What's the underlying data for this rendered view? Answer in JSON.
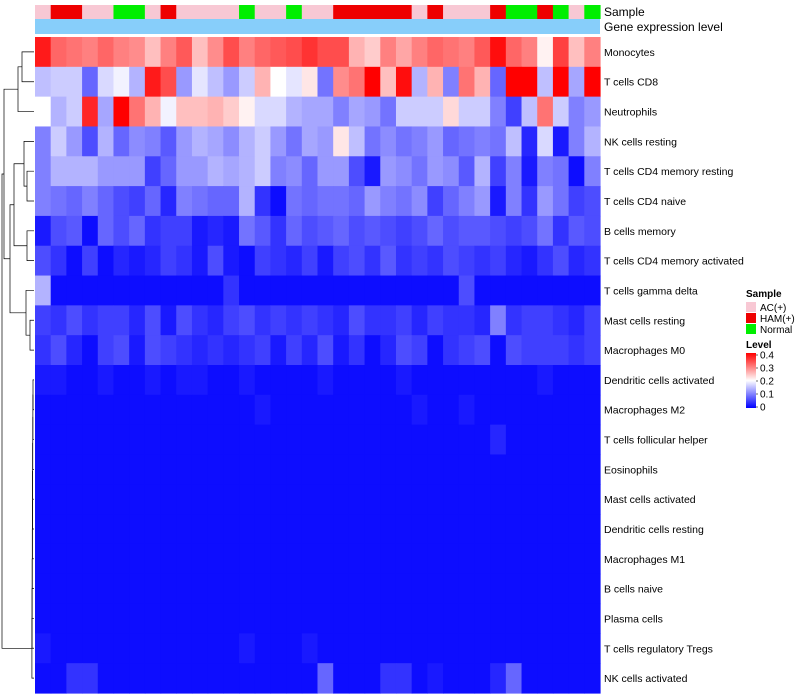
{
  "chart_data": {
    "type": "heatmap",
    "annotation_tracks": [
      "Sample",
      "Gene expression level"
    ],
    "rows": [
      "Monocytes",
      "T cells CD8",
      "Neutrophils",
      "NK cells resting",
      "T cells CD4 memory resting",
      "T cells CD4 naive",
      "B cells memory",
      "T cells CD4 memory activated",
      "T cells gamma delta",
      "Mast cells resting",
      "Macrophages M0",
      "Dendritic cells activated",
      "Macrophages M2",
      "T cells follicular helper",
      "Eosinophils",
      "Mast cells activated",
      "Dendritic cells resting",
      "Macrophages M1",
      "B cells naive",
      "Plasma cells",
      "T cells regulatory  Tregs",
      "NK cells activated"
    ],
    "sample_groups": [
      "AC(+)",
      "HAM(+)",
      "HAM(+)",
      "AC(+)",
      "AC(+)",
      "Normal",
      "Normal",
      "AC(+)",
      "HAM(+)",
      "AC(+)",
      "AC(+)",
      "AC(+)",
      "AC(+)",
      "Normal",
      "AC(+)",
      "AC(+)",
      "Normal",
      "AC(+)",
      "AC(+)",
      "HAM(+)",
      "HAM(+)",
      "HAM(+)",
      "HAM(+)",
      "HAM(+)",
      "AC(+)",
      "HAM(+)",
      "AC(+)",
      "AC(+)",
      "AC(+)",
      "HAM(+)",
      "Normal",
      "Normal",
      "HAM(+)",
      "Normal",
      "AC(+)",
      "Normal"
    ],
    "values": [
      [
        0.38,
        0.32,
        0.31,
        0.3,
        0.32,
        0.3,
        0.29,
        0.25,
        0.3,
        0.33,
        0.25,
        0.29,
        0.34,
        0.3,
        0.32,
        0.33,
        0.34,
        0.36,
        0.34,
        0.34,
        0.26,
        0.24,
        0.3,
        0.27,
        0.3,
        0.32,
        0.31,
        0.3,
        0.33,
        0.39,
        0.32,
        0.3,
        0.21,
        0.35,
        0.25,
        0.3
      ],
      [
        0.15,
        0.16,
        0.16,
        0.08,
        0.17,
        0.19,
        0.14,
        0.38,
        0.34,
        0.12,
        0.18,
        0.15,
        0.12,
        0.16,
        0.26,
        0.2,
        0.18,
        0.22,
        0.09,
        0.29,
        0.31,
        0.4,
        0.25,
        0.39,
        0.14,
        0.26,
        0.1,
        0.31,
        0.26,
        0.08,
        0.4,
        0.4,
        0.15,
        0.4,
        0.13,
        0.4
      ],
      [
        0.2,
        0.14,
        0.16,
        0.37,
        0.13,
        0.4,
        0.31,
        0.26,
        0.19,
        0.25,
        0.25,
        0.26,
        0.24,
        0.21,
        0.17,
        0.17,
        0.14,
        0.13,
        0.13,
        0.1,
        0.13,
        0.12,
        0.09,
        0.16,
        0.16,
        0.16,
        0.23,
        0.16,
        0.16,
        0.1,
        0.05,
        0.15,
        0.31,
        0.16,
        0.1,
        0.12
      ],
      [
        0.1,
        0.16,
        0.12,
        0.06,
        0.14,
        0.08,
        0.11,
        0.1,
        0.07,
        0.12,
        0.14,
        0.13,
        0.11,
        0.14,
        0.16,
        0.12,
        0.09,
        0.13,
        0.12,
        0.22,
        0.15,
        0.09,
        0.11,
        0.09,
        0.1,
        0.12,
        0.08,
        0.09,
        0.1,
        0.09,
        0.15,
        0.03,
        0.17,
        0.02,
        0.1,
        0.14
      ],
      [
        0.1,
        0.14,
        0.14,
        0.14,
        0.12,
        0.12,
        0.12,
        0.05,
        0.08,
        0.12,
        0.12,
        0.14,
        0.13,
        0.14,
        0.16,
        0.1,
        0.11,
        0.08,
        0.12,
        0.12,
        0.06,
        0.02,
        0.12,
        0.11,
        0.09,
        0.12,
        0.11,
        0.07,
        0.14,
        0.05,
        0.1,
        0.02,
        0.1,
        0.09,
        0.01,
        0.1
      ],
      [
        0.1,
        0.09,
        0.08,
        0.1,
        0.08,
        0.06,
        0.05,
        0.08,
        0.03,
        0.1,
        0.09,
        0.08,
        0.08,
        0.14,
        0.04,
        0.01,
        0.09,
        0.08,
        0.09,
        0.09,
        0.08,
        0.12,
        0.1,
        0.09,
        0.11,
        0.05,
        0.08,
        0.1,
        0.12,
        0.02,
        0.1,
        0.04,
        0.12,
        0.09,
        0.05,
        0.06
      ],
      [
        0.02,
        0.06,
        0.07,
        0.01,
        0.08,
        0.06,
        0.08,
        0.04,
        0.05,
        0.05,
        0.02,
        0.03,
        0.02,
        0.09,
        0.07,
        0.04,
        0.08,
        0.06,
        0.07,
        0.08,
        0.06,
        0.07,
        0.06,
        0.05,
        0.06,
        0.08,
        0.06,
        0.07,
        0.07,
        0.06,
        0.05,
        0.06,
        0.09,
        0.04,
        0.07,
        0.06
      ],
      [
        0.06,
        0.04,
        0.01,
        0.05,
        0.01,
        0.03,
        0.02,
        0.03,
        0.05,
        0.04,
        0.02,
        0.06,
        0.02,
        0.01,
        0.05,
        0.04,
        0.03,
        0.05,
        0.02,
        0.05,
        0.06,
        0.04,
        0.07,
        0.04,
        0.05,
        0.04,
        0.06,
        0.05,
        0.04,
        0.05,
        0.03,
        0.02,
        0.04,
        0.06,
        0.03,
        0.04
      ],
      [
        0.14,
        0.01,
        0.01,
        0.01,
        0.01,
        0.01,
        0.01,
        0.01,
        0.01,
        0.01,
        0.01,
        0.01,
        0.04,
        0.01,
        0.01,
        0.01,
        0.01,
        0.01,
        0.01,
        0.01,
        0.01,
        0.01,
        0.01,
        0.01,
        0.01,
        0.01,
        0.01,
        0.06,
        0.01,
        0.01,
        0.01,
        0.01,
        0.01,
        0.01,
        0.01,
        0.01
      ],
      [
        0.05,
        0.04,
        0.06,
        0.04,
        0.05,
        0.05,
        0.03,
        0.06,
        0.02,
        0.06,
        0.04,
        0.03,
        0.05,
        0.06,
        0.04,
        0.05,
        0.04,
        0.05,
        0.04,
        0.03,
        0.06,
        0.04,
        0.04,
        0.05,
        0.03,
        0.05,
        0.04,
        0.04,
        0.03,
        0.1,
        0.04,
        0.05,
        0.05,
        0.04,
        0.03,
        0.05
      ],
      [
        0.04,
        0.06,
        0.03,
        0.01,
        0.05,
        0.06,
        0.02,
        0.06,
        0.05,
        0.04,
        0.03,
        0.04,
        0.03,
        0.04,
        0.05,
        0.02,
        0.05,
        0.03,
        0.06,
        0.02,
        0.04,
        0.01,
        0.03,
        0.06,
        0.05,
        0.01,
        0.04,
        0.05,
        0.06,
        0.01,
        0.06,
        0.05,
        0.05,
        0.05,
        0.04,
        0.05
      ],
      [
        0.02,
        0.02,
        0.01,
        0.01,
        0.02,
        0.01,
        0.01,
        0.02,
        0.01,
        0.02,
        0.02,
        0.01,
        0.01,
        0.02,
        0.01,
        0.01,
        0.01,
        0.01,
        0.02,
        0.01,
        0.01,
        0.01,
        0.01,
        0.02,
        0.01,
        0.01,
        0.01,
        0.01,
        0.01,
        0.01,
        0.01,
        0.01,
        0.02,
        0.01,
        0.01,
        0.01
      ],
      [
        0.01,
        0.01,
        0.01,
        0.01,
        0.01,
        0.01,
        0.01,
        0.01,
        0.01,
        0.01,
        0.01,
        0.01,
        0.01,
        0.01,
        0.02,
        0.01,
        0.01,
        0.01,
        0.01,
        0.01,
        0.01,
        0.01,
        0.01,
        0.01,
        0.02,
        0.01,
        0.01,
        0.02,
        0.01,
        0.01,
        0.01,
        0.01,
        0.01,
        0.01,
        0.01,
        0.01
      ],
      [
        0.01,
        0.01,
        0.01,
        0.01,
        0.01,
        0.01,
        0.01,
        0.01,
        0.01,
        0.01,
        0.01,
        0.01,
        0.01,
        0.01,
        0.01,
        0.01,
        0.01,
        0.01,
        0.01,
        0.01,
        0.01,
        0.01,
        0.01,
        0.01,
        0.01,
        0.01,
        0.01,
        0.01,
        0.01,
        0.03,
        0.01,
        0.01,
        0.01,
        0.01,
        0.01,
        0.01
      ],
      [
        0.01,
        0.01,
        0.01,
        0.01,
        0.01,
        0.01,
        0.01,
        0.01,
        0.01,
        0.01,
        0.01,
        0.01,
        0.01,
        0.01,
        0.01,
        0.01,
        0.01,
        0.01,
        0.01,
        0.01,
        0.01,
        0.01,
        0.01,
        0.01,
        0.01,
        0.01,
        0.01,
        0.01,
        0.01,
        0.01,
        0.01,
        0.01,
        0.01,
        0.01,
        0.01,
        0.01
      ],
      [
        0.01,
        0.01,
        0.01,
        0.01,
        0.01,
        0.01,
        0.01,
        0.01,
        0.01,
        0.01,
        0.01,
        0.01,
        0.01,
        0.01,
        0.01,
        0.01,
        0.01,
        0.01,
        0.01,
        0.01,
        0.01,
        0.01,
        0.01,
        0.01,
        0.01,
        0.01,
        0.01,
        0.01,
        0.01,
        0.01,
        0.01,
        0.01,
        0.01,
        0.01,
        0.01,
        0.01
      ],
      [
        0.01,
        0.01,
        0.01,
        0.01,
        0.01,
        0.01,
        0.01,
        0.01,
        0.01,
        0.01,
        0.01,
        0.01,
        0.01,
        0.01,
        0.01,
        0.01,
        0.01,
        0.01,
        0.01,
        0.01,
        0.01,
        0.01,
        0.01,
        0.01,
        0.01,
        0.01,
        0.01,
        0.01,
        0.01,
        0.01,
        0.01,
        0.01,
        0.01,
        0.01,
        0.01,
        0.01
      ],
      [
        0.01,
        0.01,
        0.01,
        0.01,
        0.01,
        0.01,
        0.01,
        0.01,
        0.01,
        0.01,
        0.01,
        0.01,
        0.01,
        0.01,
        0.01,
        0.01,
        0.01,
        0.01,
        0.01,
        0.01,
        0.01,
        0.01,
        0.01,
        0.01,
        0.01,
        0.01,
        0.01,
        0.01,
        0.01,
        0.01,
        0.01,
        0.01,
        0.01,
        0.01,
        0.01,
        0.01
      ],
      [
        0.01,
        0.01,
        0.01,
        0.01,
        0.01,
        0.01,
        0.01,
        0.01,
        0.01,
        0.01,
        0.01,
        0.01,
        0.01,
        0.01,
        0.01,
        0.01,
        0.01,
        0.01,
        0.01,
        0.01,
        0.01,
        0.01,
        0.01,
        0.01,
        0.01,
        0.01,
        0.01,
        0.01,
        0.01,
        0.01,
        0.01,
        0.01,
        0.01,
        0.01,
        0.01,
        0.01
      ],
      [
        0.01,
        0.01,
        0.01,
        0.01,
        0.01,
        0.01,
        0.01,
        0.01,
        0.01,
        0.01,
        0.01,
        0.01,
        0.01,
        0.01,
        0.01,
        0.01,
        0.01,
        0.01,
        0.01,
        0.01,
        0.01,
        0.01,
        0.01,
        0.01,
        0.01,
        0.01,
        0.01,
        0.01,
        0.01,
        0.01,
        0.01,
        0.01,
        0.01,
        0.01,
        0.01,
        0.01
      ],
      [
        0.02,
        0.01,
        0.01,
        0.01,
        0.01,
        0.01,
        0.01,
        0.01,
        0.01,
        0.01,
        0.01,
        0.01,
        0.01,
        0.02,
        0.01,
        0.01,
        0.01,
        0.02,
        0.01,
        0.01,
        0.01,
        0.01,
        0.01,
        0.01,
        0.01,
        0.01,
        0.01,
        0.01,
        0.01,
        0.01,
        0.01,
        0.01,
        0.01,
        0.01,
        0.01,
        0.01
      ],
      [
        0.01,
        0.01,
        0.04,
        0.04,
        0.01,
        0.01,
        0.01,
        0.01,
        0.01,
        0.01,
        0.01,
        0.01,
        0.01,
        0.01,
        0.01,
        0.01,
        0.01,
        0.01,
        0.08,
        0.01,
        0.01,
        0.01,
        0.04,
        0.04,
        0.01,
        0.02,
        0.01,
        0.01,
        0.01,
        0.03,
        0.08,
        0.01,
        0.01,
        0.01,
        0.01,
        0.01
      ]
    ],
    "legend": {
      "sample_title": "Sample",
      "sample_entries": [
        {
          "label": "AC(+)",
          "color": "#f8c8d4"
        },
        {
          "label": "HAM(+)",
          "color": "#ee0000"
        },
        {
          "label": "Normal",
          "color": "#00ee00"
        }
      ],
      "level_title": "Level",
      "level_ticks": [
        "0.4",
        "0.3",
        "0.2",
        "0.1",
        "0"
      ],
      "level_range": [
        0,
        0.4
      ]
    },
    "colors": {
      "low": "#0000ff",
      "mid": "#ffffff",
      "high": "#ff0000",
      "expression_track": "#87cefa"
    }
  }
}
